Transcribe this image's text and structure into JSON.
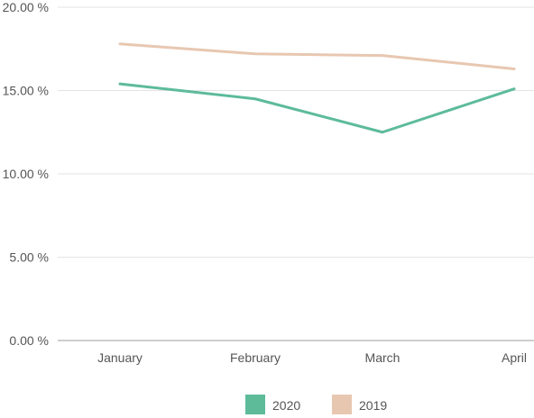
{
  "chart_data": {
    "type": "line",
    "categories": [
      "January",
      "February",
      "March",
      "April"
    ],
    "series": [
      {
        "name": "2020",
        "values": [
          15.4,
          14.5,
          12.5,
          15.1
        ],
        "color": "#5dbb9a"
      },
      {
        "name": "2019",
        "values": [
          17.8,
          17.2,
          17.1,
          16.3
        ],
        "color": "#e8c7b1"
      }
    ],
    "y_ticks": [
      "0.00 %",
      "5.00 %",
      "10.00 %",
      "15.00 %",
      "20.00 %"
    ],
    "ylim": [
      0,
      20
    ],
    "grid": true,
    "legend_position": "bottom",
    "title": "",
    "xlabel": "",
    "ylabel": ""
  }
}
